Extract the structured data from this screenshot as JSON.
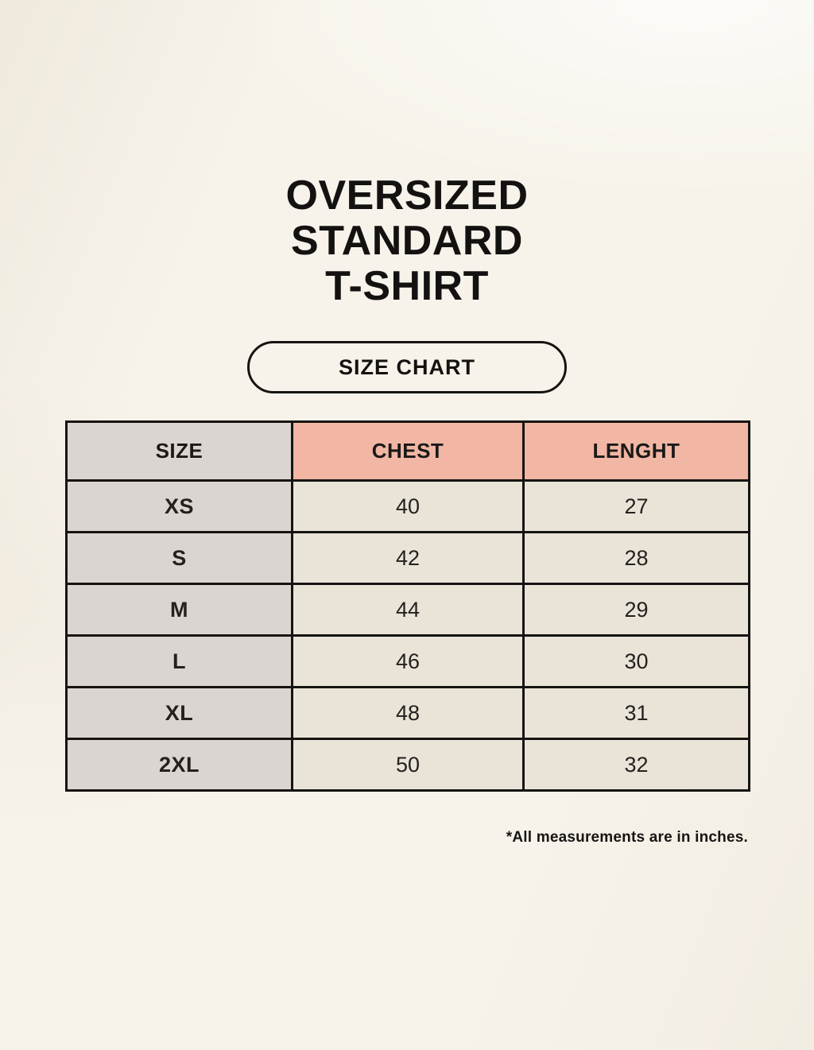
{
  "header": {
    "title_lines": [
      "OVERSIZED",
      "STANDARD",
      "T-SHIRT"
    ],
    "badge_label": "SIZE CHART"
  },
  "footnote": "*All measurements are in inches.",
  "colors": {
    "background": "#f7f3ea",
    "accent_header": "#f1b6a4",
    "size_column": "#dbd5d1",
    "value_cell": "#eae4d8",
    "border": "#161412",
    "text": "#1b1918"
  },
  "chart_data": {
    "type": "table",
    "title": "OVERSIZED STANDARD T-SHIRT",
    "subtitle": "SIZE CHART",
    "columns": [
      "SIZE",
      "CHEST",
      "LENGHT"
    ],
    "rows": [
      [
        "XS",
        "40",
        "27"
      ],
      [
        "S",
        "42",
        "28"
      ],
      [
        "M",
        "44",
        "29"
      ],
      [
        "L",
        "46",
        "30"
      ],
      [
        "XL",
        "48",
        "31"
      ],
      [
        "2XL",
        "50",
        "32"
      ]
    ],
    "units_note": "*All measurements are in inches.",
    "layout": "3 equal columns; first column gray, CHEST/LENGHT headers salmon; black grid borders"
  }
}
